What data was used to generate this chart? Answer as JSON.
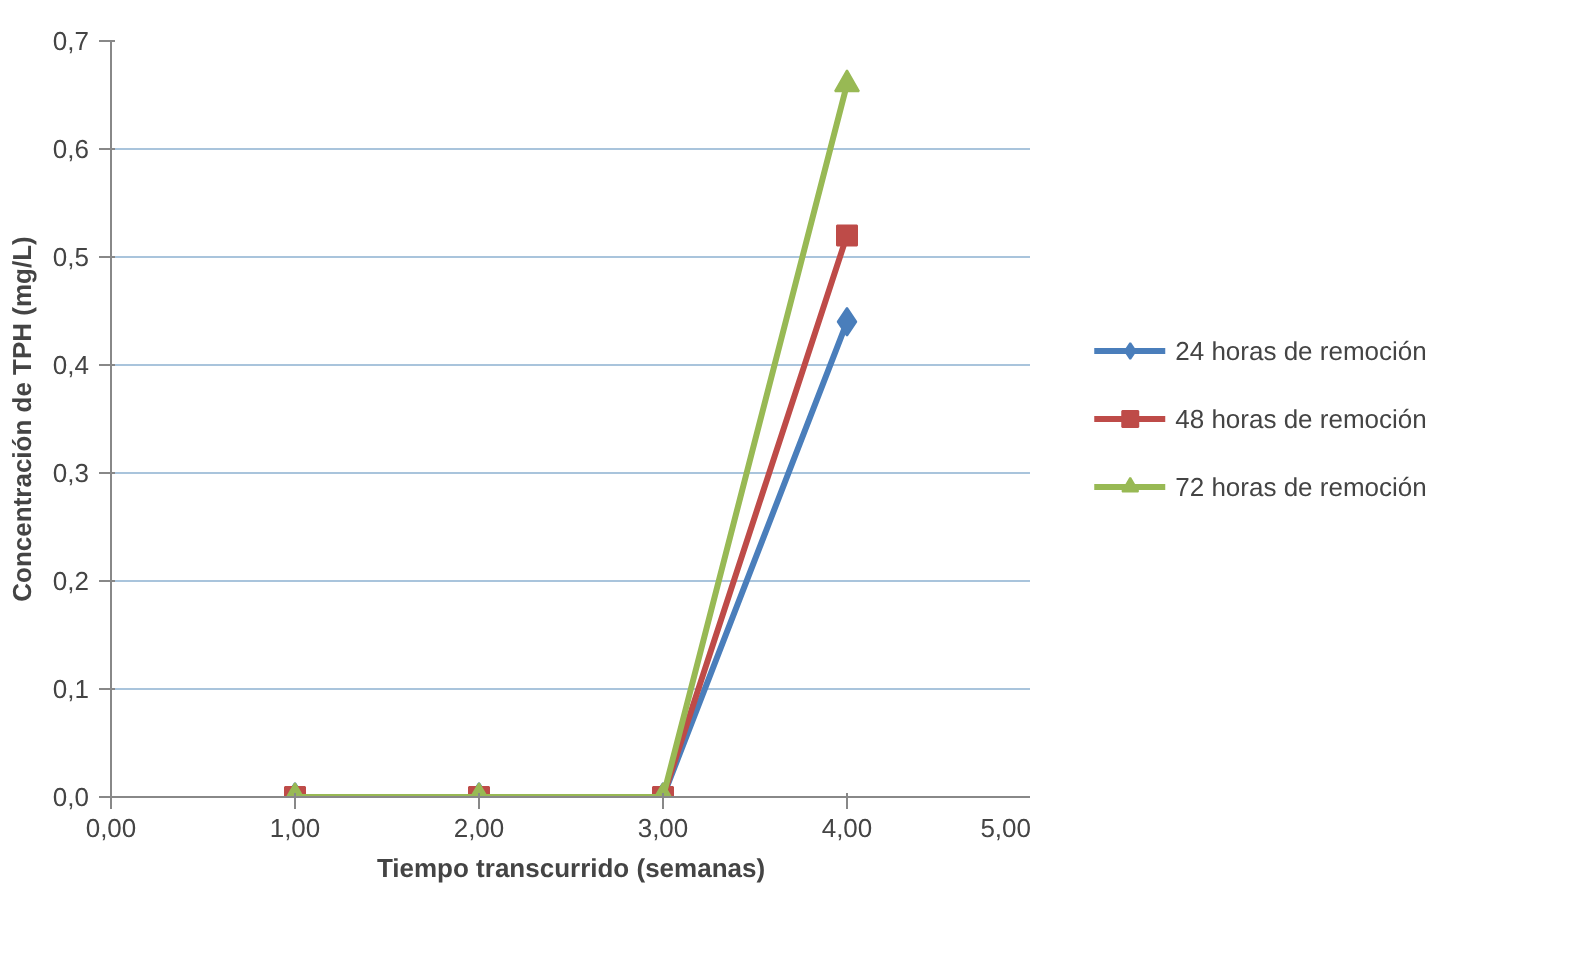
{
  "chart_data": {
    "type": "line",
    "xlabel": "Tiempo transcurrido (semanas)",
    "ylabel": "Concentración de TPH (mg/L)",
    "x": [
      1,
      2,
      3,
      4
    ],
    "series": [
      {
        "name": "24 horas de remoción",
        "color": "#4a7ebb",
        "marker": "diamond",
        "values": [
          0,
          0,
          0,
          0.44
        ]
      },
      {
        "name": "48 horas de remoción",
        "color": "#be4b48",
        "marker": "square",
        "values": [
          0,
          0,
          0,
          0.52
        ]
      },
      {
        "name": "72 horas de remoción",
        "color": "#98b954",
        "marker": "triangle",
        "values": [
          0,
          0,
          0,
          0.66
        ]
      }
    ],
    "xlim": [
      0,
      5
    ],
    "ylim": [
      0,
      0.7
    ],
    "xticks": [
      {
        "value": 0,
        "label": "0,00"
      },
      {
        "value": 1,
        "label": "1,00"
      },
      {
        "value": 2,
        "label": "2,00"
      },
      {
        "value": 3,
        "label": "3,00"
      },
      {
        "value": 4,
        "label": "4,00"
      },
      {
        "value": 5,
        "label": "5,00"
      }
    ],
    "yticks": [
      {
        "value": 0,
        "label": "0,0"
      },
      {
        "value": 0.1,
        "label": "0,1"
      },
      {
        "value": 0.2,
        "label": "0,2"
      },
      {
        "value": 0.3,
        "label": "0,3"
      },
      {
        "value": 0.4,
        "label": "0,4"
      },
      {
        "value": 0.5,
        "label": "0,5"
      },
      {
        "value": 0.6,
        "label": "0,6"
      },
      {
        "value": 0.7,
        "label": "0,7"
      }
    ],
    "grid": "y",
    "legend": "right",
    "line_style": "solid"
  }
}
